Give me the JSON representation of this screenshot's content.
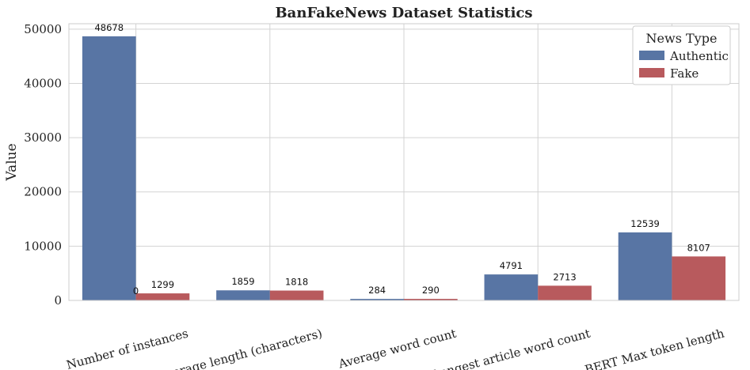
{
  "chart_data": {
    "type": "bar",
    "title": "BanFakeNews Dataset Statistics",
    "xlabel": "",
    "ylabel": "Value",
    "ylim": [
      0,
      51000
    ],
    "yticks": [
      0,
      10000,
      20000,
      30000,
      40000,
      50000
    ],
    "grid": true,
    "legend": {
      "title": "News Type",
      "placement": "top-right"
    },
    "categories": [
      "Number of instances",
      "Average length (characters)",
      "Average word count",
      "Longest article word count",
      "BERT Max token length"
    ],
    "series": [
      {
        "name": "Authentic",
        "color": "#5875a4",
        "values": [
          48678,
          1859,
          284,
          4791,
          12539
        ]
      },
      {
        "name": "Fake",
        "color": "#b85a5d",
        "values": [
          1299,
          1818,
          290,
          2713,
          8107
        ]
      }
    ],
    "annotations": [
      {
        "text": "0",
        "category_index": 0
      }
    ]
  }
}
